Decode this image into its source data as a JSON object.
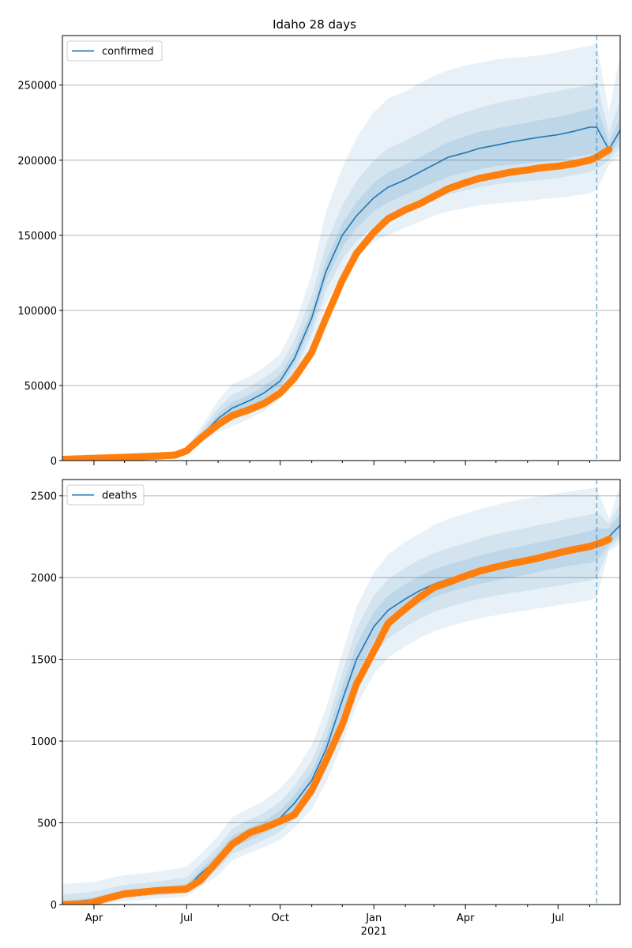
{
  "figure": {
    "title": "Idaho 28 days"
  },
  "colors": {
    "model": "#1f77b4",
    "band": "#1f77b4",
    "observed": "#ff7f0e",
    "grid": "#b0b0b0",
    "marker": "#1f77b4"
  },
  "chart_data": [
    {
      "type": "line",
      "title": "Idaho 28 days",
      "xlabel": "",
      "ylabel": "",
      "legend": {
        "label": "confirmed",
        "position": "top-left"
      },
      "x_range": [
        "2020-03-01",
        "2021-08-31"
      ],
      "ylim": [
        0,
        283000
      ],
      "y_ticks": [
        0,
        50000,
        100000,
        150000,
        200000,
        250000
      ],
      "y_tick_labels": [
        "0",
        "50000",
        "100000",
        "150000",
        "200000",
        "250000"
      ],
      "grid": "horizontal",
      "forecast_start": "2021-08-08",
      "model": {
        "dates": [
          "2020-03-01",
          "2020-04-01",
          "2020-05-01",
          "2020-06-01",
          "2020-06-20",
          "2020-07-01",
          "2020-07-15",
          "2020-08-01",
          "2020-08-15",
          "2020-09-01",
          "2020-09-15",
          "2020-10-01",
          "2020-10-15",
          "2020-11-01",
          "2020-11-15",
          "2020-12-01",
          "2020-12-15",
          "2021-01-01",
          "2021-01-15",
          "2021-02-01",
          "2021-02-15",
          "2021-03-01",
          "2021-03-15",
          "2021-04-01",
          "2021-04-15",
          "2021-05-01",
          "2021-05-15",
          "2021-06-01",
          "2021-06-15",
          "2021-07-01",
          "2021-07-15",
          "2021-08-01",
          "2021-08-08",
          "2021-08-20",
          "2021-08-31"
        ],
        "values": [
          800,
          900,
          1200,
          2100,
          3200,
          7000,
          16000,
          28000,
          35000,
          40000,
          45000,
          53000,
          68000,
          95000,
          126000,
          150000,
          163000,
          175000,
          182000,
          187000,
          192000,
          197000,
          202000,
          205000,
          208000,
          210000,
          212000,
          214000,
          215500,
          217000,
          219000,
          222000,
          222000,
          207000,
          220000
        ],
        "band_inner": {
          "lower": [
            700,
            800,
            1000,
            1900,
            3000,
            6500,
            15000,
            25000,
            31000,
            36000,
            41000,
            49000,
            64000,
            90000,
            120000,
            142000,
            155000,
            166000,
            172000,
            177000,
            181000,
            185000,
            189000,
            192000,
            194000,
            196000,
            197000,
            198000,
            199000,
            200000,
            202000,
            204000,
            204000,
            203000,
            214000
          ],
          "upper": [
            900,
            1000,
            1400,
            2300,
            3500,
            7500,
            17500,
            31000,
            39000,
            44000,
            49500,
            57500,
            73000,
            101000,
            133000,
            158000,
            172000,
            185000,
            192000,
            197000,
            202000,
            207000,
            212000,
            216000,
            219000,
            221000,
            223000,
            225000,
            227000,
            229000,
            231000,
            234000,
            236000,
            212000,
            228000
          ]
        },
        "band_mid": {
          "lower": [
            600,
            700,
            900,
            1700,
            2700,
            6000,
            13500,
            22000,
            27000,
            32000,
            37000,
            45000,
            59000,
            84000,
            113000,
            134000,
            146000,
            156000,
            161000,
            166000,
            170000,
            174000,
            177000,
            180000,
            182000,
            184000,
            185000,
            186000,
            187000,
            188000,
            190000,
            192000,
            194000,
            200000,
            209000
          ],
          "upper": [
            1000,
            1100,
            1600,
            2600,
            3900,
            8200,
            19500,
            35000,
            44000,
            49000,
            55000,
            63000,
            80000,
            110000,
            144000,
            170000,
            186000,
            200000,
            208000,
            213000,
            218000,
            223000,
            228000,
            232000,
            235000,
            238000,
            240000,
            242000,
            244000,
            246000,
            248000,
            250000,
            252000,
            218000,
            240000
          ]
        },
        "band_outer": {
          "lower": [
            500,
            600,
            800,
            1500,
            2400,
            5500,
            12000,
            19000,
            23000,
            28000,
            33000,
            41000,
            54000,
            77000,
            104000,
            125000,
            137000,
            146000,
            150000,
            155000,
            159000,
            163000,
            166000,
            168000,
            170000,
            171000,
            172000,
            173000,
            174000,
            175000,
            176000,
            178000,
            180000,
            197000,
            203000
          ],
          "upper": [
            1100,
            1300,
            1800,
            2900,
            4400,
            9000,
            22000,
            40000,
            51000,
            56000,
            62000,
            71000,
            90000,
            124000,
            166000,
            195000,
            215000,
            232000,
            241000,
            246000,
            251000,
            256000,
            260000,
            263000,
            265000,
            267000,
            268000,
            269000,
            270000,
            272000,
            274000,
            276000,
            278000,
            232000,
            270000
          ]
        }
      },
      "observed": {
        "dates": [
          "2020-03-01",
          "2020-04-01",
          "2020-05-01",
          "2020-06-01",
          "2020-06-20",
          "2020-07-01",
          "2020-07-15",
          "2020-08-01",
          "2020-08-15",
          "2020-09-01",
          "2020-09-15",
          "2020-10-01",
          "2020-10-15",
          "2020-11-01",
          "2020-11-15",
          "2020-12-01",
          "2020-12-15",
          "2021-01-01",
          "2021-01-15",
          "2021-02-01",
          "2021-02-15",
          "2021-03-01",
          "2021-03-15",
          "2021-04-01",
          "2021-04-15",
          "2021-05-01",
          "2021-05-15",
          "2021-06-01",
          "2021-06-15",
          "2021-07-01",
          "2021-07-15",
          "2021-08-01",
          "2021-08-08",
          "2021-08-15",
          "2021-08-20"
        ],
        "values": [
          800,
          1500,
          2200,
          3000,
          3700,
          6500,
          15000,
          24000,
          30000,
          34000,
          38000,
          45000,
          55000,
          72000,
          95000,
          120000,
          138000,
          152000,
          161000,
          167000,
          171000,
          176000,
          181000,
          185000,
          188000,
          190000,
          192000,
          193500,
          195000,
          196000,
          197500,
          200000,
          202000,
          205000,
          207000
        ]
      }
    },
    {
      "type": "line",
      "title": "",
      "xlabel": "",
      "ylabel": "",
      "legend": {
        "label": "deaths",
        "position": "top-left"
      },
      "x_range": [
        "2020-03-01",
        "2021-08-31"
      ],
      "ylim": [
        0,
        2600
      ],
      "y_ticks": [
        0,
        500,
        1000,
        1500,
        2000,
        2500
      ],
      "y_tick_labels": [
        "0",
        "500",
        "1000",
        "1500",
        "2000",
        "2500"
      ],
      "x_tick_labels": [
        "Apr",
        "Jul",
        "Oct",
        "Jan",
        "Apr",
        "Jul"
      ],
      "x_tick_dates": [
        "2020-04-01",
        "2020-07-01",
        "2020-10-01",
        "2021-01-01",
        "2021-04-01",
        "2021-07-01"
      ],
      "x_year_label": "2021",
      "grid": "horizontal",
      "forecast_start": "2021-08-08",
      "model": {
        "dates": [
          "2020-03-01",
          "2020-04-01",
          "2020-05-01",
          "2020-06-01",
          "2020-07-01",
          "2020-07-15",
          "2020-08-01",
          "2020-08-15",
          "2020-09-01",
          "2020-09-15",
          "2020-10-01",
          "2020-10-15",
          "2020-11-01",
          "2020-11-15",
          "2020-12-01",
          "2020-12-15",
          "2021-01-01",
          "2021-01-15",
          "2021-02-01",
          "2021-02-15",
          "2021-03-01",
          "2021-03-15",
          "2021-04-01",
          "2021-04-15",
          "2021-05-01",
          "2021-05-15",
          "2021-06-01",
          "2021-06-15",
          "2021-07-01",
          "2021-07-15",
          "2021-08-01",
          "2021-08-08",
          "2021-08-20",
          "2021-08-31"
        ],
        "values": [
          10,
          30,
          70,
          85,
          100,
          190,
          280,
          380,
          430,
          470,
          530,
          620,
          760,
          950,
          1250,
          1500,
          1700,
          1800,
          1870,
          1920,
          1960,
          1990,
          2020,
          2045,
          2070,
          2090,
          2110,
          2130,
          2150,
          2170,
          2190,
          2200,
          2250,
          2320
        ],
        "band_inner": {
          "lower": [
            5,
            20,
            55,
            70,
            85,
            165,
            250,
            345,
            395,
            435,
            490,
            575,
            710,
            890,
            1170,
            1410,
            1610,
            1720,
            1790,
            1840,
            1880,
            1910,
            1940,
            1960,
            1985,
            2000,
            2020,
            2040,
            2060,
            2075,
            2090,
            2105,
            2200,
            2270
          ],
          "upper": [
            20,
            45,
            90,
            105,
            125,
            215,
            315,
            420,
            470,
            510,
            575,
            670,
            815,
            1015,
            1330,
            1590,
            1790,
            1890,
            1960,
            2010,
            2050,
            2080,
            2110,
            2135,
            2160,
            2180,
            2200,
            2220,
            2240,
            2260,
            2285,
            2300,
            2300,
            2390
          ]
        },
        "band_mid": {
          "lower": [
            0,
            10,
            40,
            55,
            70,
            140,
            220,
            310,
            355,
            395,
            445,
            525,
            650,
            820,
            1080,
            1320,
            1520,
            1630,
            1700,
            1750,
            1790,
            1820,
            1850,
            1870,
            1890,
            1905,
            1920,
            1935,
            1950,
            1965,
            1980,
            2000,
            2180,
            2240
          ],
          "upper": [
            60,
            80,
            120,
            140,
            165,
            250,
            355,
            465,
            520,
            560,
            630,
            725,
            880,
            1090,
            1420,
            1690,
            1890,
            1990,
            2060,
            2110,
            2150,
            2180,
            2210,
            2240,
            2265,
            2285,
            2305,
            2325,
            2345,
            2365,
            2385,
            2400,
            2330,
            2450
          ]
        },
        "band_outer": {
          "lower": [
            0,
            0,
            20,
            35,
            50,
            110,
            180,
            270,
            315,
            350,
            395,
            470,
            585,
            745,
            985,
            1220,
            1410,
            1510,
            1580,
            1630,
            1670,
            1700,
            1730,
            1750,
            1770,
            1785,
            1800,
            1815,
            1830,
            1845,
            1860,
            1880,
            2160,
            2210
          ],
          "upper": [
            125,
            140,
            180,
            200,
            230,
            310,
            420,
            535,
            590,
            635,
            710,
            810,
            975,
            1200,
            1540,
            1820,
            2030,
            2140,
            2220,
            2270,
            2320,
            2360,
            2390,
            2420,
            2445,
            2465,
            2485,
            2500,
            2515,
            2530,
            2545,
            2550,
            2360,
            2560
          ]
        }
      },
      "observed": {
        "dates": [
          "2020-03-01",
          "2020-03-25",
          "2020-04-01",
          "2020-04-15",
          "2020-05-01",
          "2020-06-01",
          "2020-07-01",
          "2020-07-15",
          "2020-08-01",
          "2020-08-15",
          "2020-09-01",
          "2020-09-15",
          "2020-10-01",
          "2020-10-15",
          "2020-11-01",
          "2020-11-15",
          "2020-12-01",
          "2020-12-15",
          "2021-01-01",
          "2021-01-15",
          "2021-02-01",
          "2021-02-15",
          "2021-03-01",
          "2021-03-15",
          "2021-04-01",
          "2021-04-15",
          "2021-05-01",
          "2021-05-15",
          "2021-06-01",
          "2021-06-15",
          "2021-07-01",
          "2021-07-15",
          "2021-08-01",
          "2021-08-08",
          "2021-08-15",
          "2021-08-20"
        ],
        "values": [
          0,
          5,
          15,
          40,
          65,
          85,
          95,
          150,
          270,
          370,
          440,
          470,
          510,
          550,
          700,
          880,
          1100,
          1350,
          1550,
          1720,
          1810,
          1880,
          1940,
          1970,
          2010,
          2040,
          2065,
          2085,
          2105,
          2125,
          2150,
          2170,
          2190,
          2205,
          2220,
          2235
        ]
      }
    }
  ]
}
